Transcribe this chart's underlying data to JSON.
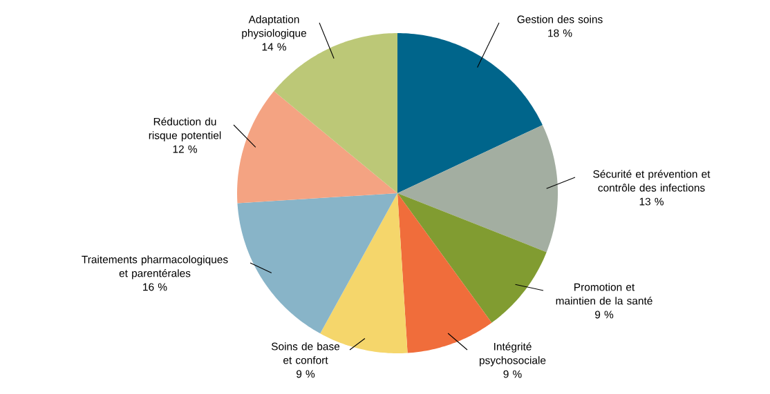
{
  "chart_data": {
    "type": "pie",
    "categories": [
      "Gestion des soins",
      "Sécurité et prévention et contrôle des infections",
      "Promotion et maintien de la santé",
      "Intégrité psychosociale",
      "Soins de base et confort",
      "Traitements pharmacologiques et parentérales",
      "Réduction du risque potentiel",
      "Adaptation physiologique"
    ],
    "values": [
      18,
      13,
      9,
      9,
      9,
      16,
      12,
      14
    ],
    "value_labels": [
      "18 %",
      "13 %",
      "9 %",
      "9 %",
      "9 %",
      "16 %",
      "12 %",
      "14 %"
    ],
    "colors": [
      "#00658b",
      "#a3aea1",
      "#819c31",
      "#f06d3b",
      "#f5d66b",
      "#88b4c8",
      "#f4a382",
      "#bcc877"
    ]
  }
}
